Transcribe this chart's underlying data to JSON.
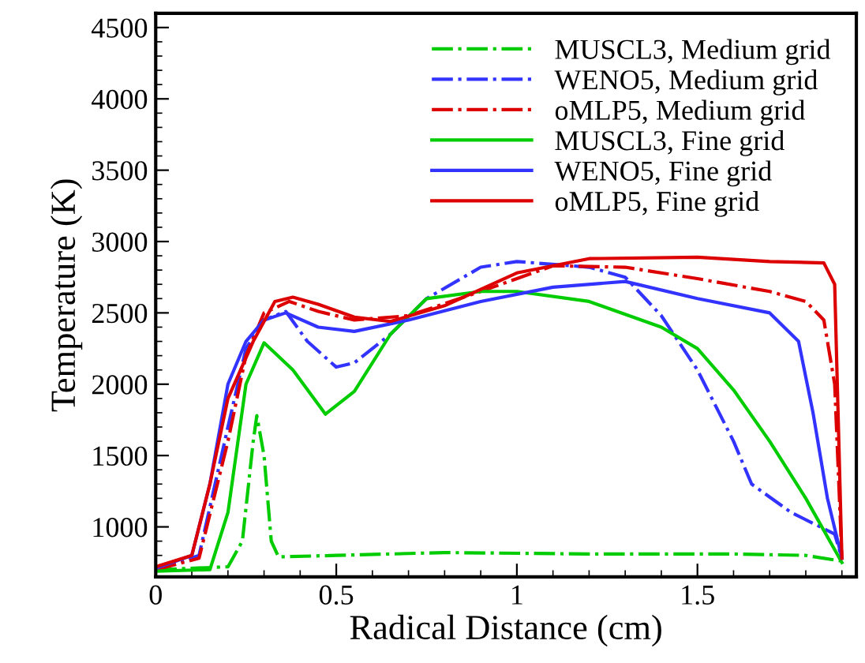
{
  "chart_data": {
    "type": "line",
    "xlabel": "Radical Distance (cm)",
    "ylabel": "Temperature (K)",
    "xlim": [
      0,
      1.94
    ],
    "xticks": [
      0,
      0.5,
      1,
      1.5
    ],
    "ylim": [
      650,
      4600
    ],
    "yticks": [
      1000,
      1500,
      2000,
      2500,
      3000,
      3500,
      4000,
      4500
    ],
    "grid": false,
    "legend": "top right",
    "marker": "none",
    "series": [
      {
        "name": "MUSCL3, Medium grid",
        "color": "#00cc00",
        "line_style": "dashdot",
        "x": [
          0,
          0.2,
          0.24,
          0.27,
          0.28,
          0.3,
          0.32,
          0.34,
          0.5,
          0.8,
          1.2,
          1.6,
          1.8,
          1.9
        ],
        "values": [
          700,
          720,
          900,
          1600,
          1780,
          1500,
          900,
          790,
          800,
          820,
          810,
          810,
          800,
          760
        ]
      },
      {
        "name": "WENO5, Medium grid",
        "color": "#3333ff",
        "line_style": "dashdot",
        "x": [
          0,
          0.12,
          0.2,
          0.25,
          0.3,
          0.36,
          0.42,
          0.5,
          0.55,
          0.65,
          0.75,
          0.9,
          1.0,
          1.2,
          1.3,
          1.4,
          1.5,
          1.6,
          1.65,
          1.76,
          1.88,
          1.9
        ],
        "values": [
          700,
          800,
          1700,
          2250,
          2450,
          2510,
          2300,
          2120,
          2150,
          2350,
          2600,
          2820,
          2860,
          2820,
          2750,
          2480,
          2100,
          1600,
          1300,
          1100,
          950,
          780
        ]
      },
      {
        "name": "oMLP5, Medium grid",
        "color": "#dd0000",
        "line_style": "dashdot",
        "x": [
          0,
          0.12,
          0.2,
          0.25,
          0.3,
          0.37,
          0.45,
          0.55,
          0.7,
          0.9,
          1.1,
          1.3,
          1.5,
          1.7,
          1.8,
          1.85,
          1.88,
          1.9
        ],
        "values": [
          700,
          780,
          1600,
          2200,
          2500,
          2580,
          2510,
          2450,
          2480,
          2650,
          2830,
          2820,
          2740,
          2650,
          2580,
          2450,
          2000,
          780
        ]
      },
      {
        "name": "MUSCL3, Fine grid",
        "color": "#00cc00",
        "line_style": "solid",
        "x": [
          0,
          0.15,
          0.2,
          0.25,
          0.3,
          0.38,
          0.47,
          0.55,
          0.65,
          0.75,
          0.9,
          1.0,
          1.2,
          1.4,
          1.5,
          1.6,
          1.7,
          1.8,
          1.9
        ],
        "values": [
          690,
          700,
          1100,
          2000,
          2290,
          2100,
          1790,
          1950,
          2350,
          2600,
          2650,
          2650,
          2580,
          2400,
          2250,
          1960,
          1600,
          1200,
          750
        ]
      },
      {
        "name": "WENO5, Fine grid",
        "color": "#3333ff",
        "line_style": "solid",
        "x": [
          0,
          0.1,
          0.15,
          0.2,
          0.25,
          0.3,
          0.36,
          0.45,
          0.55,
          0.7,
          0.9,
          1.1,
          1.3,
          1.5,
          1.7,
          1.78,
          1.82,
          1.86,
          1.9
        ],
        "values": [
          710,
          800,
          1300,
          2000,
          2300,
          2450,
          2500,
          2400,
          2370,
          2450,
          2580,
          2680,
          2720,
          2600,
          2500,
          2300,
          1800,
          1200,
          780
        ]
      },
      {
        "name": "oMLP5, Fine grid",
        "color": "#dd0000",
        "line_style": "solid",
        "x": [
          0,
          0.1,
          0.15,
          0.2,
          0.27,
          0.33,
          0.38,
          0.45,
          0.55,
          0.65,
          0.8,
          1.0,
          1.2,
          1.5,
          1.7,
          1.85,
          1.88,
          1.9
        ],
        "values": [
          720,
          800,
          1300,
          1900,
          2300,
          2580,
          2610,
          2560,
          2470,
          2440,
          2550,
          2780,
          2880,
          2890,
          2860,
          2850,
          2700,
          780
        ]
      }
    ]
  }
}
